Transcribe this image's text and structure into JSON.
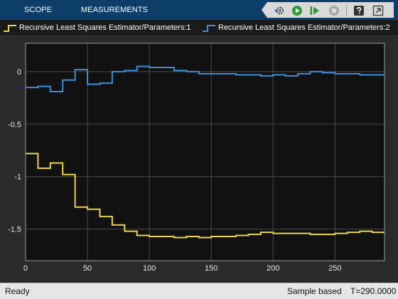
{
  "toolstrip": {
    "tabs": [
      {
        "label": "SCOPE"
      },
      {
        "label": "MEASUREMENTS"
      }
    ],
    "buttons": [
      "settings-gear-icon",
      "run-icon",
      "step-forward-icon",
      "stop-icon",
      "help-icon",
      "undock-icon"
    ],
    "colors": {
      "bar": "#0c3e69",
      "tab_text": "#ffffff"
    }
  },
  "legend": {
    "items": [
      {
        "label": "Recursive Least Squares Estimator/Parameters:1",
        "color": "#e8d44d"
      },
      {
        "label": "Recursive Least Squares Estimator/Parameters:2",
        "color": "#3e8ed8"
      }
    ]
  },
  "status": {
    "left": "Ready",
    "mode": "Sample based",
    "time": "T=290.0000"
  },
  "chart_data": {
    "type": "line",
    "title": "",
    "xlabel": "",
    "ylabel": "",
    "xlim": [
      0,
      290
    ],
    "ylim": [
      -1.8,
      0.27
    ],
    "xticks": [
      0,
      50,
      100,
      150,
      200,
      250
    ],
    "yticks": [
      0,
      -0.5,
      -1,
      -1.5
    ],
    "grid": true,
    "step": true,
    "background": "#111111",
    "series": [
      {
        "name": "Recursive Least Squares Estimator/Parameters:1",
        "color": "#e8d44d",
        "x": [
          0,
          10,
          20,
          30,
          40,
          50,
          60,
          70,
          80,
          90,
          100,
          110,
          120,
          130,
          140,
          150,
          160,
          170,
          180,
          190,
          200,
          210,
          220,
          230,
          240,
          250,
          260,
          270,
          280,
          290
        ],
        "y": [
          -0.78,
          -0.92,
          -0.87,
          -0.98,
          -1.29,
          -1.31,
          -1.38,
          -1.46,
          -1.52,
          -1.56,
          -1.57,
          -1.57,
          -1.58,
          -1.57,
          -1.58,
          -1.57,
          -1.57,
          -1.56,
          -1.55,
          -1.53,
          -1.54,
          -1.54,
          -1.54,
          -1.55,
          -1.55,
          -1.54,
          -1.53,
          -1.52,
          -1.53,
          -1.53
        ]
      },
      {
        "name": "Recursive Least Squares Estimator/Parameters:2",
        "color": "#3e8ed8",
        "x": [
          0,
          10,
          20,
          30,
          40,
          50,
          60,
          70,
          80,
          90,
          100,
          110,
          120,
          130,
          140,
          150,
          160,
          170,
          180,
          190,
          200,
          210,
          220,
          230,
          240,
          250,
          260,
          270,
          280,
          290
        ],
        "y": [
          -0.15,
          -0.14,
          -0.19,
          -0.08,
          0.02,
          -0.12,
          -0.11,
          0.0,
          0.01,
          0.05,
          0.04,
          0.04,
          0.01,
          0.0,
          -0.02,
          -0.02,
          -0.02,
          -0.03,
          -0.03,
          -0.04,
          -0.03,
          -0.04,
          -0.02,
          0.0,
          -0.01,
          -0.02,
          -0.02,
          -0.03,
          -0.03,
          -0.03
        ]
      }
    ]
  }
}
